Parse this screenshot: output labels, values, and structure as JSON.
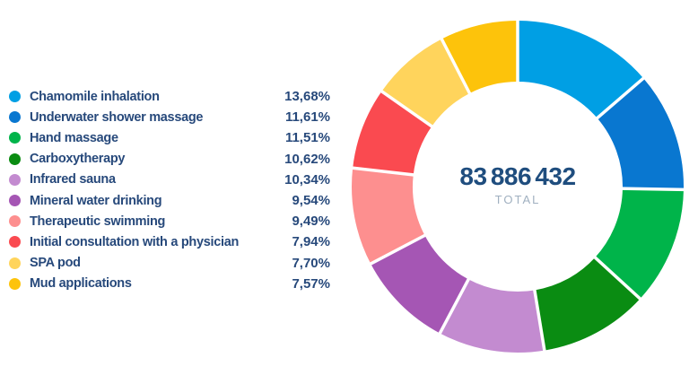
{
  "chart_data": {
    "type": "pie",
    "variant": "donut",
    "start_angle_deg": 0,
    "direction": "clockwise",
    "legend_position": "left",
    "grid": false,
    "categories": [
      "Chamomile inhalation",
      "Underwater shower massage",
      "Hand massage",
      "Carboxytherapy",
      "Infrared sauna",
      "Mineral water drinking",
      "Therapeutic swimming",
      "Initial consultation with a physician",
      "SPA pod",
      "Mud applications"
    ],
    "values": [
      13.68,
      11.61,
      11.51,
      10.62,
      10.34,
      9.54,
      9.49,
      7.94,
      7.7,
      7.57
    ],
    "value_labels": [
      "13,68%",
      "11,61%",
      "11,51%",
      "10,62%",
      "10,34%",
      "9,54%",
      "9,49%",
      "7,94%",
      "7,70%",
      "7,57%"
    ],
    "colors": [
      "#009FE4",
      "#0977D0",
      "#00B44A",
      "#0A8C12",
      "#C38BD0",
      "#A556B4",
      "#FD8F8F",
      "#FA4A50",
      "#FFD45C",
      "#FDC30B"
    ],
    "center": {
      "value": "83 886 432",
      "label": "TOTAL"
    }
  },
  "styles": {
    "legend_text_color": "#27497B",
    "total_value_color": "#1F4D7E",
    "total_label_color": "#A0B0C0",
    "separator_color": "#FFFFFF",
    "background_color": "#FFFFFF"
  }
}
